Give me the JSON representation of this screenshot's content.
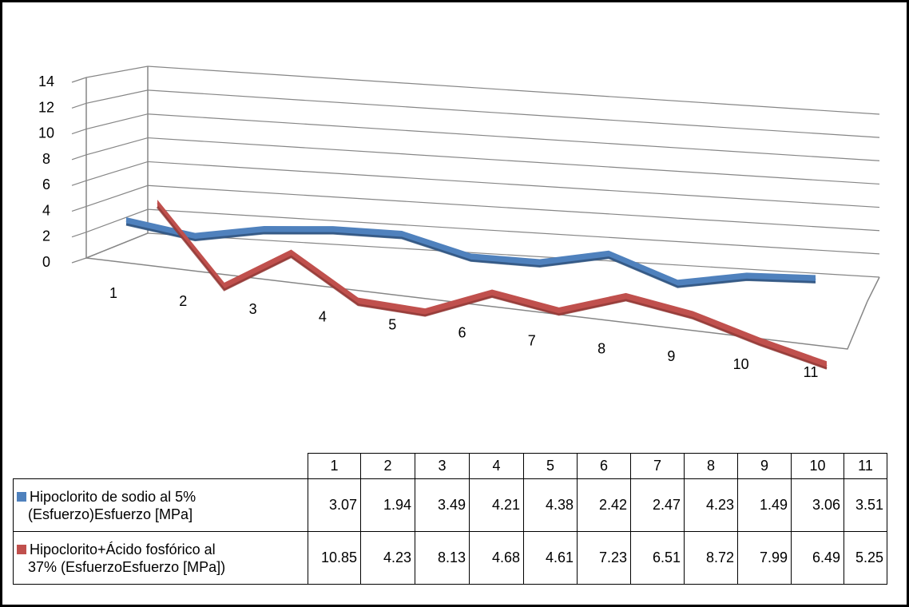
{
  "chart_data": {
    "type": "line",
    "title": "",
    "xlabel": "",
    "ylabel": "",
    "ylim": [
      0,
      14
    ],
    "yticks": [
      "0",
      "2",
      "4",
      "6",
      "8",
      "10",
      "12",
      "14"
    ],
    "categories": [
      "1",
      "2",
      "3",
      "4",
      "5",
      "6",
      "7",
      "8",
      "9",
      "10",
      "11"
    ],
    "grid": true,
    "style": "3d-line",
    "legend": "data-table",
    "series": [
      {
        "name": "Hipoclorito de sodio al 5% (Esfuerzo)Esfuerzo [MPa]",
        "name_lines": [
          "Hipoclorito de sodio al 5%",
          "(Esfuerzo)Esfuerzo [MPa]"
        ],
        "color": "#4F81BD",
        "values": [
          3.07,
          1.94,
          3.49,
          4.21,
          4.38,
          2.42,
          2.47,
          4.23,
          1.49,
          3.06,
          3.51
        ],
        "labels": [
          "3.07",
          "1.94",
          "3.49",
          "4.21",
          "4.38",
          "2.42",
          "2.47",
          "4.23",
          "1.49",
          "3.06",
          "3.51"
        ]
      },
      {
        "name": "Hipoclorito+Ácido fosfórico al 37% (EsfuerzoEsfuerzo [MPa])",
        "name_lines": [
          "Hipoclorito+Ácido fosfórico al",
          "37% (EsfuerzoEsfuerzo [MPa])"
        ],
        "color": "#C0504D",
        "values": [
          10.85,
          4.23,
          8.13,
          4.68,
          4.61,
          7.23,
          6.51,
          8.72,
          7.99,
          6.49,
          5.25
        ],
        "labels": [
          "10.85",
          "4.23",
          "8.13",
          "4.68",
          "4.61",
          "7.23",
          "6.51",
          "8.72",
          "7.99",
          "6.49",
          "5.25"
        ]
      }
    ]
  }
}
